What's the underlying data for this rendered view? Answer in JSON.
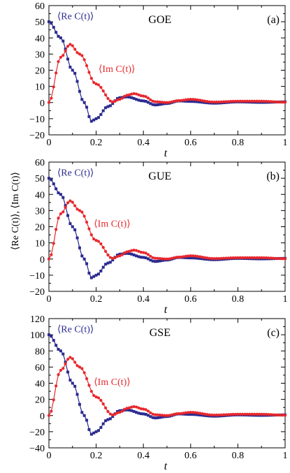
{
  "colors": {
    "re": "#2b2b8f",
    "im": "#e8282d",
    "axis": "#000000"
  },
  "y_axis_label": "⟨Re C(t)⟩,  ⟨Im C(t)⟩",
  "chart_data": [
    {
      "type": "line",
      "title": "GOE",
      "panel_tag": "(a)",
      "xlabel": "t",
      "xlim": [
        0,
        1
      ],
      "ylim": [
        -20,
        60
      ],
      "xticks": [
        0,
        0.2,
        0.4,
        0.6,
        0.8,
        1
      ],
      "xtick_labels": [
        "0",
        "0.2",
        "0.4",
        "0.6",
        "0.8",
        "1"
      ],
      "yticks": [
        -20,
        -10,
        0,
        10,
        20,
        30,
        40,
        50,
        60
      ],
      "ytick_labels": [
        "−20",
        "−10",
        "0",
        "10",
        "20",
        "30",
        "40",
        "50",
        "60"
      ],
      "grid": false,
      "amplitude": 50,
      "annotations": [
        {
          "text": "⟨Re C(t)⟩",
          "series": "re",
          "x": 0.035,
          "y": 51.5
        },
        {
          "text": "⟨Im C(t)⟩",
          "series": "im",
          "x": 0.21,
          "y": 19
        }
      ],
      "series": [
        {
          "name": "⟨Re C(t)⟩",
          "key": "re",
          "marker": "square",
          "x": [
            0,
            0.05,
            0.1,
            0.15,
            0.18,
            0.2,
            0.25,
            0.3,
            0.33,
            0.4,
            0.45,
            0.5,
            0.55,
            0.6,
            0.7,
            0.8,
            0.9,
            1.0
          ],
          "values": [
            50,
            40,
            20,
            0,
            -11.6,
            -10,
            -2.5,
            3,
            3.5,
            1,
            -1.5,
            -0.6,
            1,
            0.7,
            -0.4,
            0.4,
            0.1,
            0.4
          ]
        },
        {
          "name": "⟨Im C(t)⟩",
          "key": "im",
          "marker": "circle",
          "x": [
            0,
            0.05,
            0.09,
            0.13,
            0.2,
            0.27,
            0.3,
            0.33,
            0.36,
            0.4,
            0.45,
            0.5,
            0.55,
            0.6,
            0.7,
            0.8,
            0.9,
            1.0
          ],
          "values": [
            0,
            28,
            36,
            30,
            11.5,
            0.4,
            2,
            4.5,
            5.5,
            4,
            0.5,
            0,
            1.2,
            2,
            0.3,
            0.8,
            0.8,
            0.2
          ]
        }
      ]
    },
    {
      "type": "line",
      "title": "GUE",
      "panel_tag": "(b)",
      "xlabel": "t",
      "xlim": [
        0,
        1
      ],
      "ylim": [
        -20,
        60
      ],
      "xticks": [
        0,
        0.2,
        0.4,
        0.6,
        0.8,
        1
      ],
      "xtick_labels": [
        "0",
        "0.2",
        "0.4",
        "0.6",
        "0.8",
        "1"
      ],
      "yticks": [
        -20,
        -10,
        0,
        10,
        20,
        30,
        40,
        50,
        60
      ],
      "ytick_labels": [
        "−20",
        "−10",
        "0",
        "10",
        "20",
        "30",
        "40",
        "50",
        "60"
      ],
      "grid": false,
      "amplitude": 50,
      "annotations": [
        {
          "text": "⟨Re C(t)⟩",
          "series": "re",
          "x": 0.035,
          "y": 51.5
        },
        {
          "text": "⟨Im C(t)⟩",
          "series": "im",
          "x": 0.19,
          "y": 20
        }
      ],
      "series": [
        {
          "name": "⟨Re C(t)⟩",
          "key": "re",
          "marker": "square",
          "x": [
            0,
            0.05,
            0.1,
            0.15,
            0.18,
            0.2,
            0.25,
            0.3,
            0.33,
            0.4,
            0.45,
            0.5,
            0.55,
            0.6,
            0.7,
            0.8,
            0.9,
            1.0
          ],
          "values": [
            50,
            40,
            20,
            0,
            -11.6,
            -10,
            -2.5,
            3,
            3.5,
            1,
            -1.5,
            -0.6,
            1,
            0.7,
            -0.4,
            0.4,
            0.1,
            0.4
          ]
        },
        {
          "name": "⟨Im C(t)⟩",
          "key": "im",
          "marker": "circle",
          "x": [
            0,
            0.05,
            0.09,
            0.13,
            0.2,
            0.27,
            0.3,
            0.33,
            0.36,
            0.4,
            0.45,
            0.5,
            0.55,
            0.6,
            0.7,
            0.8,
            0.9,
            1.0
          ],
          "values": [
            0,
            28,
            36,
            30,
            11.5,
            0.4,
            2,
            4.5,
            5.5,
            4,
            0.5,
            0,
            1.2,
            2,
            0.3,
            0.8,
            0.8,
            0.2
          ]
        }
      ]
    },
    {
      "type": "line",
      "title": "GSE",
      "panel_tag": "(c)",
      "xlabel": "t",
      "xlim": [
        0,
        1
      ],
      "ylim": [
        -40,
        120
      ],
      "xticks": [
        0,
        0.2,
        0.4,
        0.6,
        0.8,
        1
      ],
      "xtick_labels": [
        "0",
        "0.2",
        "0.4",
        "0.6",
        "0.8",
        "1"
      ],
      "yticks": [
        -40,
        -20,
        0,
        20,
        40,
        60,
        80,
        100,
        120
      ],
      "ytick_labels": [
        "−40",
        "−20",
        "0",
        "20",
        "40",
        "60",
        "80",
        "100",
        "120"
      ],
      "grid": false,
      "amplitude": 100,
      "annotations": [
        {
          "text": "⟨Re C(t)⟩",
          "series": "re",
          "x": 0.035,
          "y": 103
        },
        {
          "text": "⟨Im C(t)⟩",
          "series": "im",
          "x": 0.19,
          "y": 38
        }
      ],
      "series": [
        {
          "name": "⟨Re C(t)⟩",
          "key": "re",
          "marker": "square",
          "x": [
            0,
            0.05,
            0.1,
            0.15,
            0.18,
            0.2,
            0.25,
            0.3,
            0.33,
            0.4,
            0.45,
            0.5,
            0.55,
            0.6,
            0.7,
            0.8,
            0.9,
            1.0
          ],
          "values": [
            100,
            80,
            40,
            0,
            -23.2,
            -20,
            -5,
            6,
            7,
            2,
            -3,
            -1.2,
            2,
            1.4,
            -0.8,
            0.8,
            0.2,
            0.8
          ]
        },
        {
          "name": "⟨Im C(t)⟩",
          "key": "im",
          "marker": "circle",
          "x": [
            0,
            0.05,
            0.09,
            0.13,
            0.2,
            0.27,
            0.3,
            0.33,
            0.36,
            0.4,
            0.45,
            0.5,
            0.55,
            0.6,
            0.7,
            0.8,
            0.9,
            1.0
          ],
          "values": [
            0,
            56,
            72,
            60,
            23,
            0.8,
            4,
            9,
            11,
            8,
            1,
            0,
            2.4,
            4,
            0.6,
            1.6,
            1.6,
            0.4
          ]
        }
      ]
    }
  ]
}
